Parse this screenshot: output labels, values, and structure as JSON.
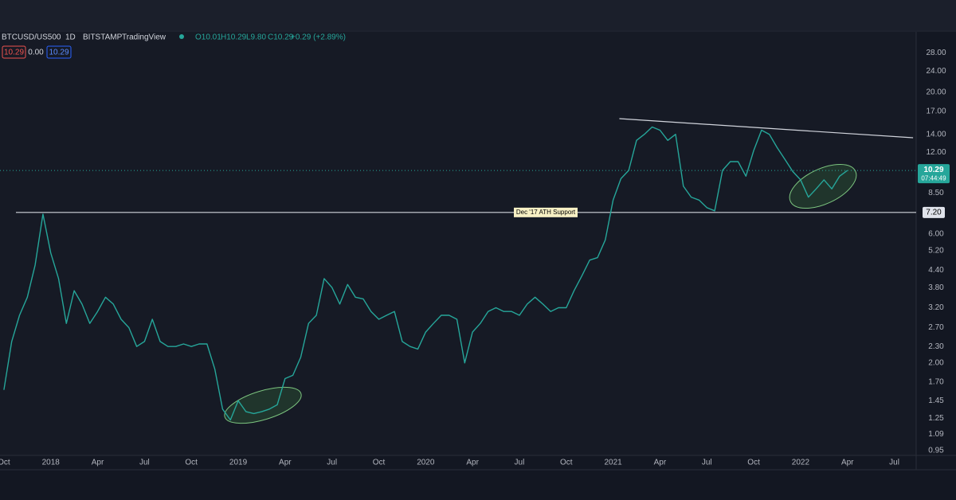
{
  "header": {
    "symbol": "BTCUSD/US500",
    "interval": "1D",
    "exchange": "BITSTAMP",
    "source": "TradingView",
    "ohlc_text": [
      "O10.01",
      "H10.29",
      "L9.80",
      "C10.29",
      "+0.29 (+2.89%)"
    ],
    "badges": [
      "10.29",
      "0.00",
      "10.29"
    ]
  },
  "chart_data": {
    "type": "line",
    "log_y": true,
    "grid": false,
    "xlim": [
      -0.25,
      58.4
    ],
    "xticks": [
      {
        "value": 0,
        "label": "Oct"
      },
      {
        "value": 3,
        "label": "2018"
      },
      {
        "value": 6,
        "label": "Apr"
      },
      {
        "value": 9,
        "label": "Jul"
      },
      {
        "value": 12,
        "label": "Oct"
      },
      {
        "value": 15,
        "label": "2019"
      },
      {
        "value": 18,
        "label": "Apr"
      },
      {
        "value": 21,
        "label": "Jul"
      },
      {
        "value": 24,
        "label": "Oct"
      },
      {
        "value": 27,
        "label": "2020"
      },
      {
        "value": 30,
        "label": "Apr"
      },
      {
        "value": 33,
        "label": "Jul"
      },
      {
        "value": 36,
        "label": "Oct"
      },
      {
        "value": 39,
        "label": "2021"
      },
      {
        "value": 42,
        "label": "Apr"
      },
      {
        "value": 45,
        "label": "Jul"
      },
      {
        "value": 48,
        "label": "Oct"
      },
      {
        "value": 51,
        "label": "2022"
      },
      {
        "value": 54,
        "label": "Apr"
      },
      {
        "value": 57,
        "label": "Jul"
      }
    ],
    "ylim": [
      0.91,
      33.5
    ],
    "yticks": [
      {
        "value": 0.95,
        "label": "0.95"
      },
      {
        "value": 1.09,
        "label": "1.09"
      },
      {
        "value": 1.25,
        "label": "1.25"
      },
      {
        "value": 1.45,
        "label": "1.45"
      },
      {
        "value": 1.7,
        "label": "1.70"
      },
      {
        "value": 2,
        "label": "2.00"
      },
      {
        "value": 2.3,
        "label": "2.30"
      },
      {
        "value": 2.7,
        "label": "2.70"
      },
      {
        "value": 3.2,
        "label": "3.20"
      },
      {
        "value": 3.8,
        "label": "3.80"
      },
      {
        "value": 4.4,
        "label": "4.40"
      },
      {
        "value": 5.2,
        "label": "5.20"
      },
      {
        "value": 6,
        "label": "6.00"
      },
      {
        "value": 8.5,
        "label": "8.50"
      },
      {
        "value": 12,
        "label": "12.00"
      },
      {
        "value": 14,
        "label": "14.00"
      },
      {
        "value": 17,
        "label": "17.00"
      },
      {
        "value": 20,
        "label": "20.00"
      },
      {
        "value": 24,
        "label": "24.00"
      },
      {
        "value": 28,
        "label": "28.00"
      }
    ],
    "series": [
      {
        "name": "BTCUSD/US500",
        "color": "#26a69a",
        "x": [
          0,
          0.5,
          1,
          1.5,
          2,
          2.5,
          3,
          3.5,
          4,
          4.5,
          5,
          5.5,
          6,
          6.5,
          7,
          7.5,
          8,
          8.5,
          9,
          9.5,
          10,
          10.5,
          11,
          11.5,
          12,
          12.5,
          13,
          13.5,
          14,
          14.5,
          15,
          15.5,
          16,
          16.5,
          17,
          17.5,
          18,
          18.5,
          19,
          19.5,
          20,
          20.5,
          21,
          21.5,
          22,
          22.5,
          23,
          23.5,
          24,
          24.5,
          25,
          25.5,
          26,
          26.5,
          27,
          27.5,
          28,
          28.5,
          29,
          29.5,
          30,
          30.5,
          31,
          31.5,
          32,
          32.5,
          33,
          33.5,
          34,
          34.5,
          35,
          35.5,
          36,
          36.5,
          37,
          37.5,
          38,
          38.5,
          39,
          39.5,
          40,
          40.5,
          41,
          41.5,
          42,
          42.5,
          43,
          43.5,
          44,
          44.5,
          45,
          45.5,
          46,
          46.5,
          47,
          47.5,
          48,
          48.5,
          49,
          49.5,
          50,
          50.5,
          51,
          51.5,
          52,
          52.5,
          53,
          53.5,
          54
        ],
        "values": [
          1.59,
          2.4,
          3.0,
          3.5,
          4.6,
          7.1,
          5.1,
          4.1,
          2.8,
          3.7,
          3.3,
          2.8,
          3.1,
          3.5,
          3.3,
          2.9,
          2.7,
          2.3,
          2.4,
          2.9,
          2.4,
          2.3,
          2.3,
          2.35,
          2.3,
          2.35,
          2.35,
          1.9,
          1.35,
          1.23,
          1.45,
          1.32,
          1.3,
          1.32,
          1.35,
          1.4,
          1.75,
          1.8,
          2.1,
          2.8,
          3.0,
          4.1,
          3.8,
          3.3,
          3.9,
          3.5,
          3.45,
          3.1,
          2.9,
          3.0,
          3.1,
          2.4,
          2.3,
          2.25,
          2.6,
          2.8,
          3.0,
          3.0,
          2.9,
          2.0,
          2.6,
          2.8,
          3.1,
          3.2,
          3.1,
          3.1,
          3.0,
          3.3,
          3.5,
          3.3,
          3.1,
          3.2,
          3.2,
          3.7,
          4.2,
          4.8,
          4.9,
          5.7,
          8.0,
          9.6,
          10.3,
          13.3,
          14.0,
          14.9,
          14.5,
          13.3,
          14.0,
          9.0,
          8.2,
          8.0,
          7.5,
          7.3,
          10.3,
          11.1,
          11.1,
          9.8,
          12.2,
          14.5,
          14.0,
          12.5,
          11.3,
          10.2,
          9.5,
          8.2,
          8.8,
          9.5,
          8.8,
          9.8,
          10.29
        ]
      }
    ],
    "trendline": {
      "x": [
        39.4,
        58.2
      ],
      "values": [
        16.0,
        13.6
      ]
    },
    "support": {
      "value": 7.2,
      "value_label": "7.20",
      "label": "Dec '17 ATH Support"
    },
    "last_price": 10.29,
    "countdown": "07:44:49"
  }
}
